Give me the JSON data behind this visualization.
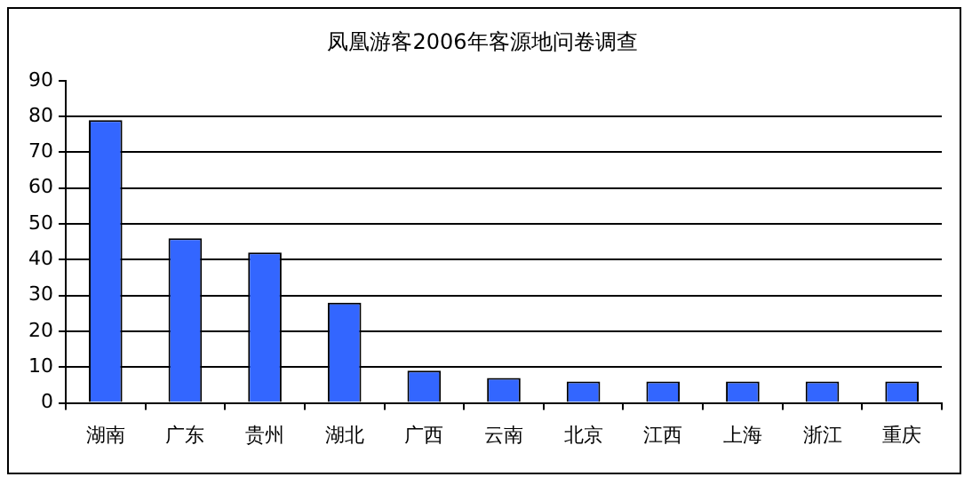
{
  "chart_data": {
    "type": "bar",
    "title": "凤凰游客2006年客源地问卷调查",
    "categories": [
      "湖南",
      "广东",
      "贵州",
      "湖北",
      "广西",
      "云南",
      "北京",
      "江西",
      "上海",
      "浙江",
      "重庆"
    ],
    "values": [
      79,
      46,
      42,
      28,
      9,
      7,
      6,
      6,
      6,
      6,
      6
    ],
    "color": "#3366ff",
    "ylim": [
      0,
      90
    ],
    "yticks": [
      0,
      10,
      20,
      30,
      40,
      50,
      60,
      70,
      80,
      90
    ],
    "grid": "y",
    "legend": false
  }
}
